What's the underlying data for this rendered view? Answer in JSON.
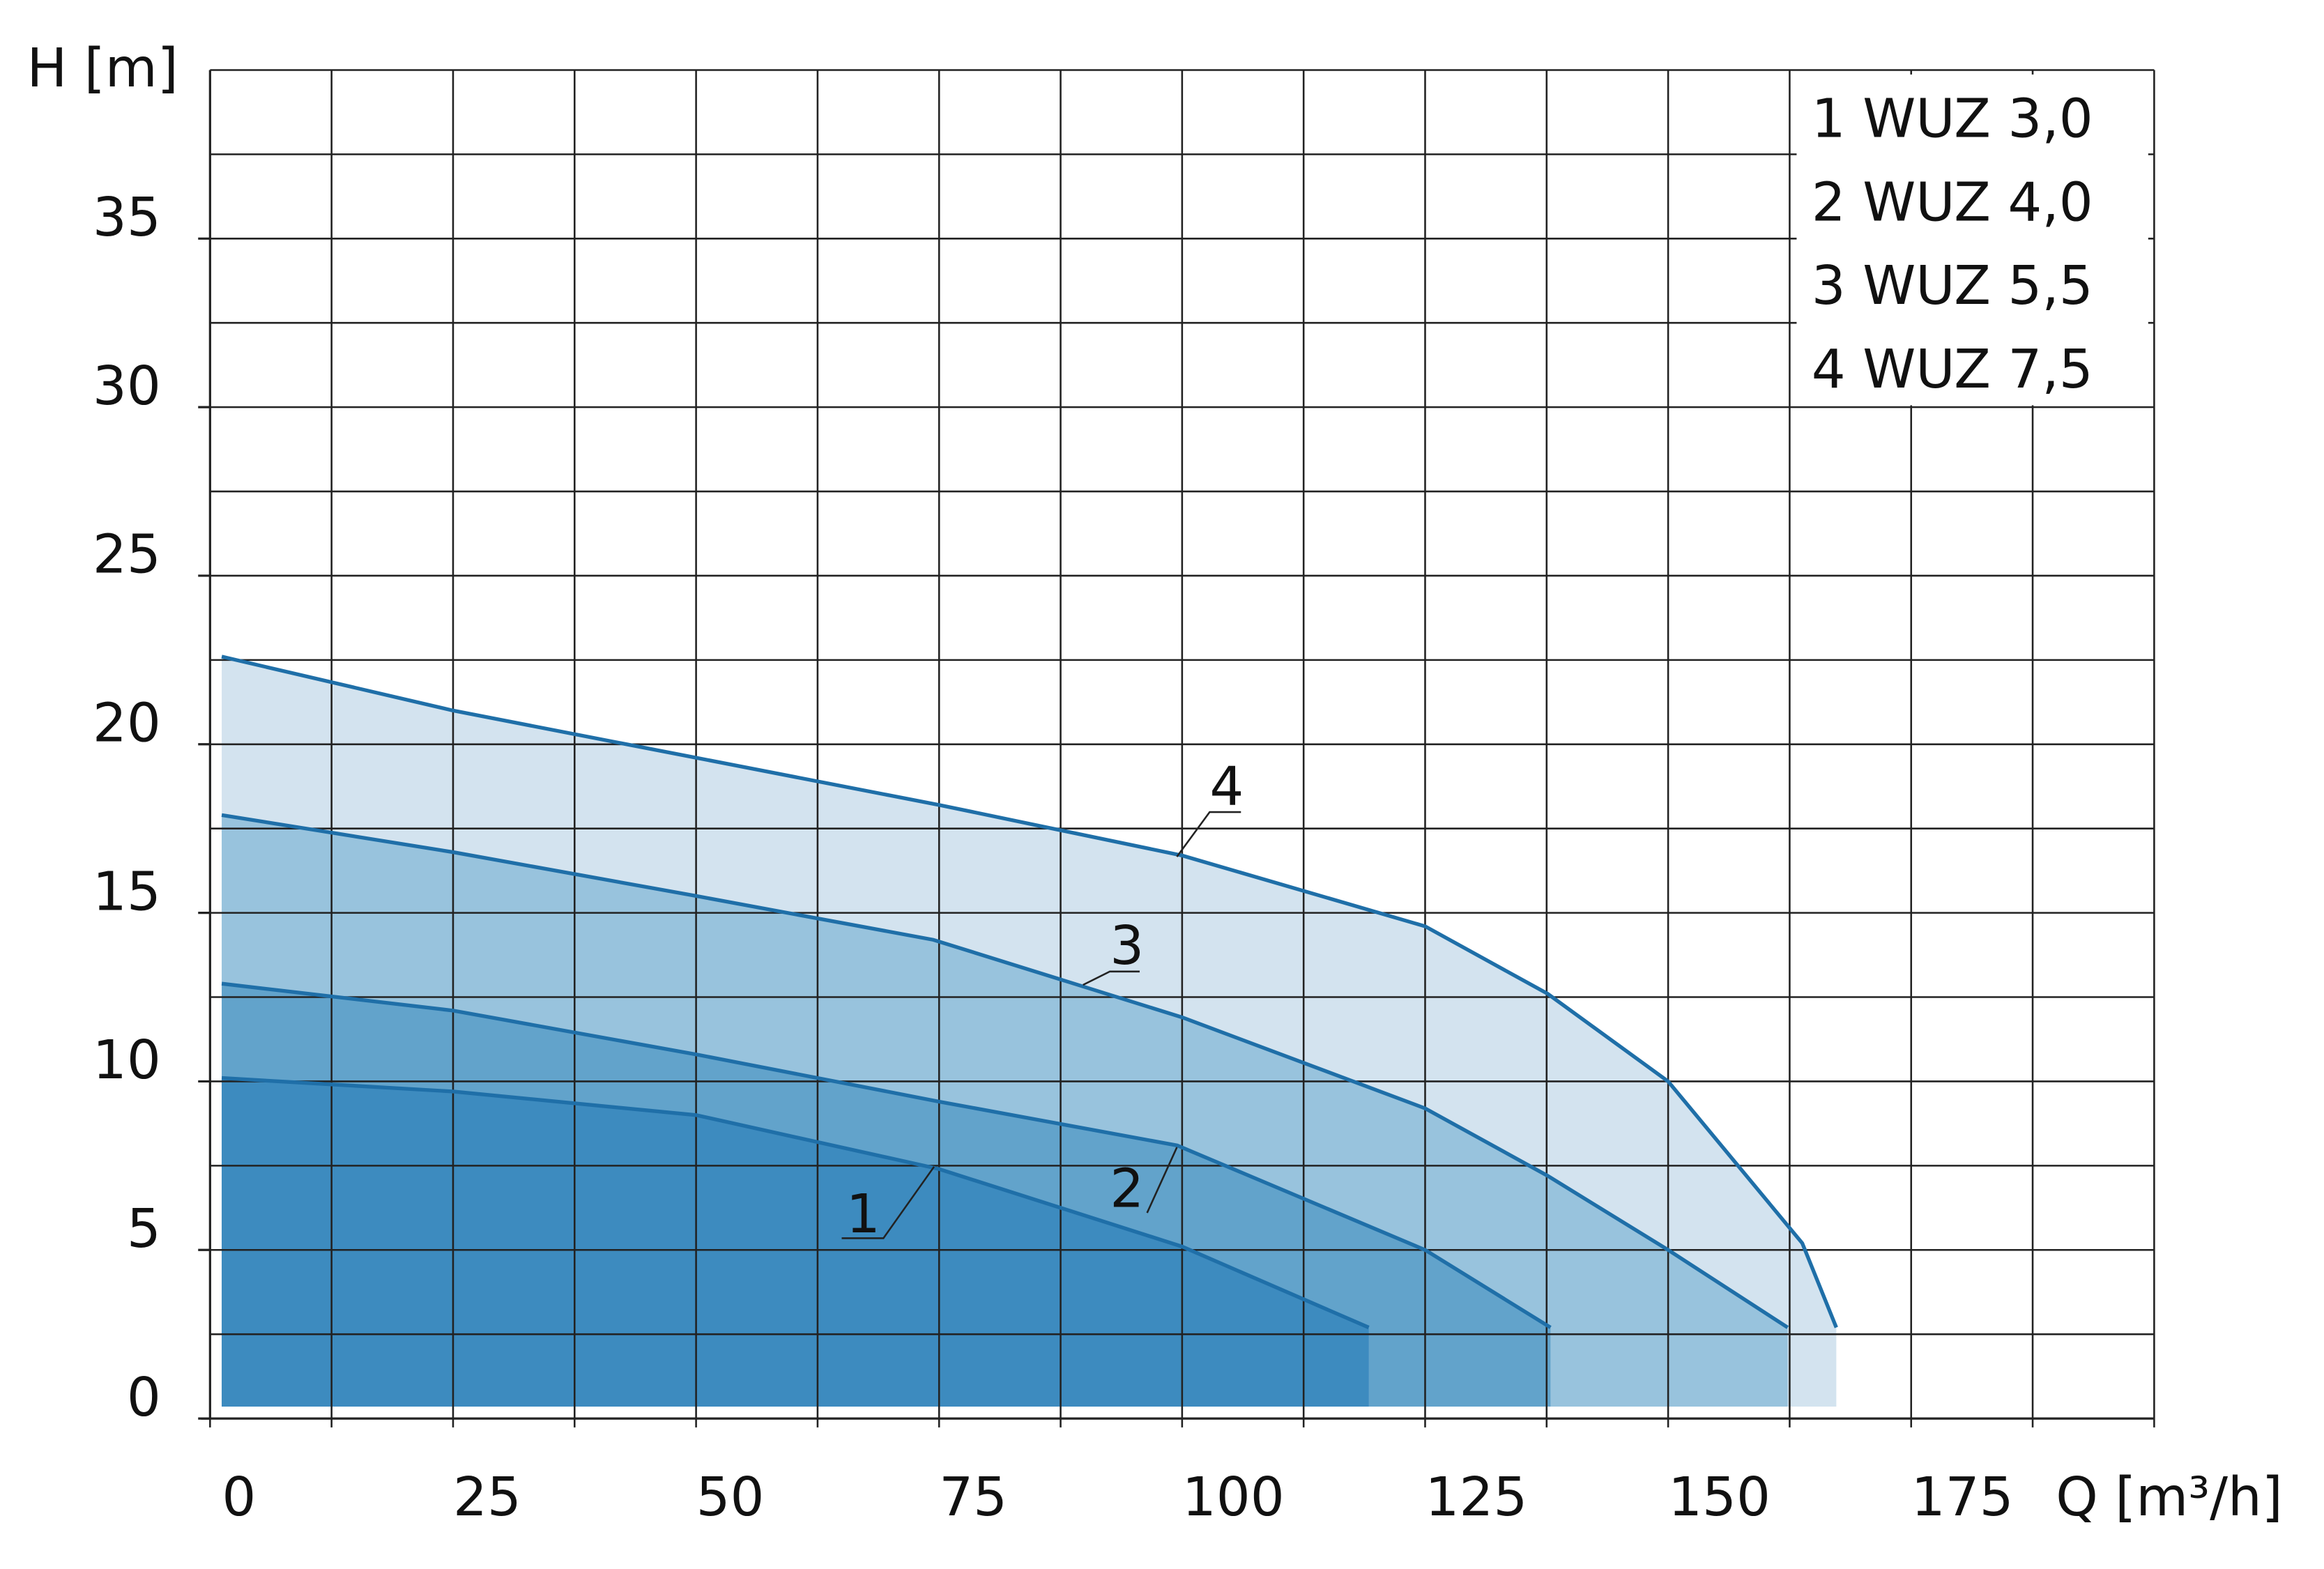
{
  "chart_data": {
    "type": "area",
    "y_label": "H [m]",
    "x_label": "Q [m³/h]",
    "xlim": [
      0,
      200
    ],
    "ylim": [
      0,
      40
    ],
    "xticks": [
      0,
      25,
      50,
      75,
      100,
      125,
      150,
      175
    ],
    "yticks": [
      0,
      5,
      10,
      15,
      20,
      25,
      30,
      35
    ],
    "xgrid": [
      0,
      12.5,
      25,
      37.5,
      50,
      62.5,
      75,
      87.5,
      100,
      112.5,
      125,
      137.5,
      150,
      162.5,
      175,
      187.5,
      200
    ],
    "ygrid": [
      0,
      2.5,
      5,
      7.5,
      10,
      12.5,
      15,
      17.5,
      20,
      22.5,
      25,
      27.5,
      30,
      32.5,
      35,
      37.5,
      40
    ],
    "grid": true,
    "line_color": "#1f6fa8",
    "curve_labels": [
      "1",
      "2",
      "3",
      "4"
    ],
    "series": [
      {
        "name": "1 WUZ 3,0",
        "color": "#3d8bbf",
        "x": [
          1.2,
          25,
          50,
          75,
          100,
          119.2
        ],
        "values": [
          10.1,
          9.7,
          9.0,
          7.4,
          5.1,
          2.7
        ]
      },
      {
        "name": "2 WUZ 4,0",
        "color": "#62a3cb",
        "x": [
          1.2,
          25,
          50,
          75,
          99.5,
          125,
          137.9
        ],
        "values": [
          12.9,
          12.1,
          10.8,
          9.4,
          8.1,
          5.0,
          2.7
        ]
      },
      {
        "name": "3 WUZ 5,5",
        "color": "#98c3dd",
        "x": [
          1.2,
          25,
          50,
          74.4,
          100,
          125,
          137.6,
          150,
          162.3
        ],
        "values": [
          17.9,
          16.8,
          15.5,
          14.2,
          11.9,
          9.2,
          7.2,
          5.0,
          2.7
        ]
      },
      {
        "name": "4 WUZ 7,5",
        "color": "#d3e3ef",
        "x": [
          1.2,
          25,
          50,
          75,
          100,
          125,
          137.6,
          150,
          163.8,
          167.3
        ],
        "values": [
          22.6,
          21.0,
          19.6,
          18.2,
          16.7,
          14.6,
          12.6,
          10.0,
          5.2,
          2.7
        ]
      }
    ]
  }
}
